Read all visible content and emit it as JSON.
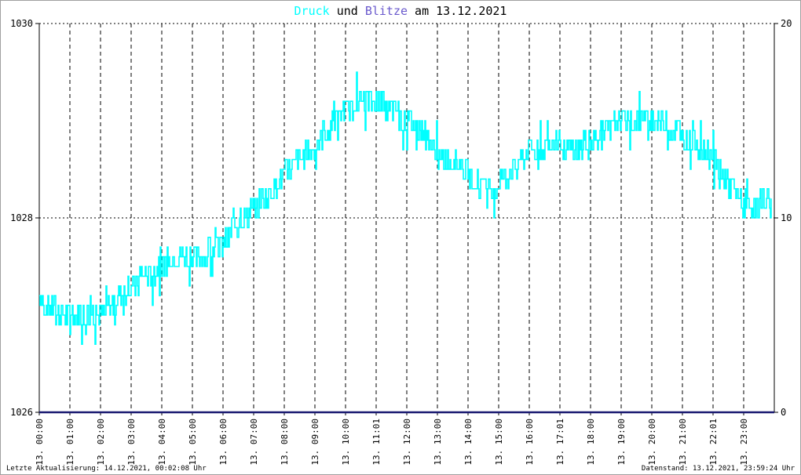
{
  "title": {
    "part1": "Druck",
    "part2": " und ",
    "part3": "Blitze",
    "part4": " am 13.12.2021",
    "color1": "#00ffff",
    "color3": "#6a5acd",
    "color_text": "#000000"
  },
  "footer": {
    "left": "Letzte Aktualisierung: 14.12.2021, 00:02:08 Uhr",
    "right": "Datenstand: 13.12.2021, 23:59:24 Uhr"
  },
  "colors": {
    "pressure": "#00ffff",
    "lightning": "#191970",
    "grid": "#000000"
  },
  "chart_data": {
    "type": "line",
    "title": "Druck und Blitze am 13.12.2021",
    "xlabel": "",
    "ylabel": "",
    "y_left_ticks": [
      "1030",
      "1028",
      "1026"
    ],
    "y_left_range": [
      1026,
      1030
    ],
    "y_right_ticks": [
      "20",
      "10",
      "0"
    ],
    "y_right_range": [
      0,
      20
    ],
    "grid": true,
    "x_tick_labels": [
      "13. 00:00",
      "13. 01:00",
      "13. 02:00",
      "13. 03:00",
      "13. 04:00",
      "13. 05:00",
      "13. 06:00",
      "13. 07:00",
      "13. 08:00",
      "13. 09:00",
      "13. 10:00",
      "13. 11:01",
      "13. 12:00",
      "13. 13:00",
      "13. 14:00",
      "13. 15:00",
      "13. 16:00",
      "13. 17:01",
      "13. 18:00",
      "13. 19:00",
      "13. 20:00",
      "13. 21:00",
      "13. 22:01",
      "13. 23:00"
    ],
    "series": [
      {
        "name": "Druck",
        "axis": "left",
        "x_hours": [
          0,
          0.5,
          1,
          1.5,
          2,
          2.5,
          3,
          3.5,
          4,
          4.5,
          5,
          5.5,
          6,
          6.5,
          7,
          7.5,
          8,
          8.5,
          9,
          9.5,
          10,
          10.5,
          11,
          11.5,
          12,
          12.5,
          13,
          13.5,
          14,
          14.5,
          15,
          15.5,
          16,
          16.5,
          17,
          17.5,
          18,
          18.5,
          19,
          19.5,
          20,
          20.5,
          21,
          21.5,
          22,
          22.5,
          23,
          23.5,
          23.9
        ],
        "values": [
          1027.2,
          1027.05,
          1027.0,
          1026.95,
          1027.0,
          1027.15,
          1027.3,
          1027.4,
          1027.5,
          1027.6,
          1027.6,
          1027.65,
          1027.75,
          1027.95,
          1028.1,
          1028.25,
          1028.45,
          1028.6,
          1028.75,
          1028.95,
          1029.1,
          1029.2,
          1029.2,
          1029.1,
          1029.0,
          1028.9,
          1028.65,
          1028.6,
          1028.45,
          1028.3,
          1028.35,
          1028.5,
          1028.7,
          1028.75,
          1028.75,
          1028.7,
          1028.8,
          1028.9,
          1029.0,
          1029.05,
          1029.0,
          1028.95,
          1028.85,
          1028.75,
          1028.6,
          1028.35,
          1028.1,
          1028.15,
          1028.2
        ]
      },
      {
        "name": "Blitze",
        "axis": "right",
        "x_hours": [
          0,
          24
        ],
        "values": [
          0,
          0
        ]
      }
    ]
  }
}
